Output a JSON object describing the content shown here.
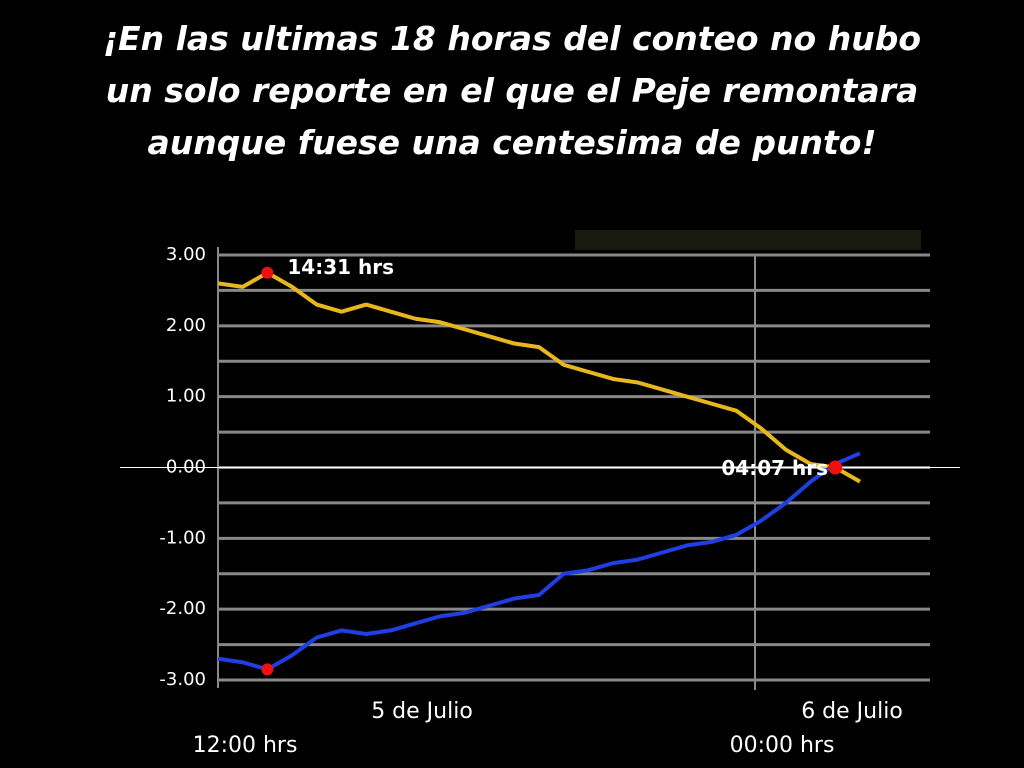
{
  "chart_data": {
    "type": "line",
    "title_lines": [
      "¡En las ultimas 18 horas del conteo no hubo",
      "un solo reporte en el que el Peje remontara",
      "aunque fuese una centesima de punto!"
    ],
    "series": [
      {
        "color": "#e8b71e",
        "values": [
          2.6,
          2.55,
          2.75,
          2.55,
          2.3,
          2.2,
          2.3,
          2.2,
          2.1,
          2.05,
          1.95,
          1.85,
          1.75,
          1.7,
          1.45,
          1.35,
          1.25,
          1.2,
          1.1,
          1.0,
          0.9,
          0.8,
          0.55,
          0.25,
          0.05,
          0.0,
          -0.2
        ]
      },
      {
        "color": "#1f3fe0",
        "values": [
          -2.7,
          -2.75,
          -2.85,
          -2.65,
          -2.4,
          -2.3,
          -2.35,
          -2.3,
          -2.2,
          -2.1,
          -2.05,
          -1.95,
          -1.85,
          -1.8,
          -1.5,
          -1.45,
          -1.35,
          -1.3,
          -1.2,
          -1.1,
          -1.05,
          -0.95,
          -0.75,
          -0.5,
          -0.2,
          0.05,
          0.2
        ]
      }
    ],
    "ylim": [
      -3,
      3
    ],
    "yticks": [
      {
        "value": -3,
        "label": "-3.00"
      },
      {
        "value": -2,
        "label": "-2.00"
      },
      {
        "value": -1,
        "label": "-1.00"
      },
      {
        "value": 0,
        "label": "0.00"
      },
      {
        "value": 1,
        "label": "1.00"
      },
      {
        "value": 2,
        "label": "2.00"
      },
      {
        "value": 3,
        "label": "3.00"
      }
    ],
    "grid": true,
    "minor_grid": true,
    "x_labels": [
      "5 de Julio",
      "6 de Julio",
      "12:00 hrs",
      "00:00 hrs"
    ],
    "annotations": [
      "14:31 hrs",
      "04:07 hrs"
    ]
  }
}
